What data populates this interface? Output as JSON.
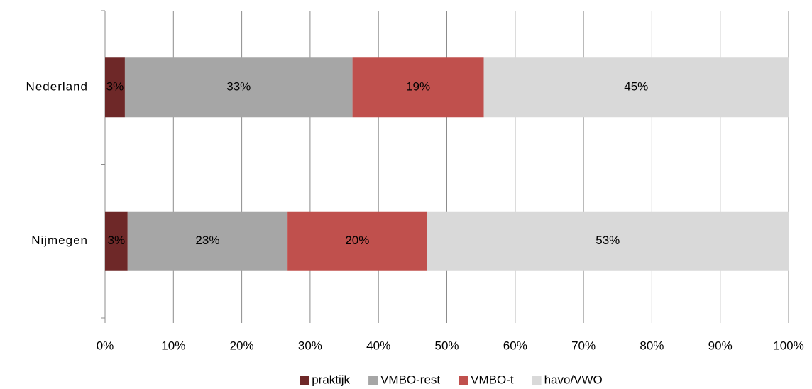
{
  "chart_data": {
    "type": "stacked_barh",
    "categories": [
      "Nederland",
      "Nijmegen"
    ],
    "series": [
      {
        "name": "praktijk",
        "color": "#6e2828",
        "values": [
          2.9,
          3.3
        ],
        "value_labels": [
          "3%",
          "3%"
        ]
      },
      {
        "name": "VMBO-rest",
        "color": "#a6a6a6",
        "values": [
          33.3,
          23.4
        ],
        "value_labels": [
          "33%",
          "23%"
        ]
      },
      {
        "name": "VMBO-t",
        "color": "#c0504d",
        "values": [
          19.2,
          20.4
        ],
        "value_labels": [
          "19%",
          "20%"
        ]
      },
      {
        "name": "havo/VWO",
        "color": "#d9d9d9",
        "values": [
          44.6,
          52.9
        ],
        "value_labels": [
          "45%",
          "53%"
        ]
      }
    ],
    "xlim": [
      0,
      100
    ],
    "xticks": [
      {
        "value": 0,
        "label": "0%"
      },
      {
        "value": 10,
        "label": "10%"
      },
      {
        "value": 20,
        "label": "20%"
      },
      {
        "value": 30,
        "label": "30%"
      },
      {
        "value": 40,
        "label": "40%"
      },
      {
        "value": 50,
        "label": "50%"
      },
      {
        "value": 60,
        "label": "60%"
      },
      {
        "value": 70,
        "label": "70%"
      },
      {
        "value": 80,
        "label": "80%"
      },
      {
        "value": 90,
        "label": "90%"
      },
      {
        "value": 100,
        "label": "100%"
      }
    ],
    "grid": true,
    "legend": "bottom"
  }
}
